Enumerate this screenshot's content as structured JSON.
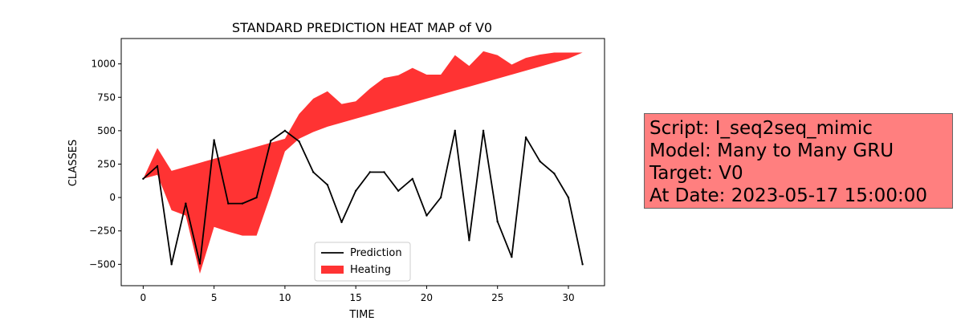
{
  "chart_data": {
    "type": "line",
    "title": "STANDARD PREDICTION HEAT MAP of V0",
    "xlabel": "TIME",
    "ylabel": "CLASSES",
    "xlim": [
      -1.55,
      32.55
    ],
    "ylim": [
      -660,
      1190
    ],
    "xticks": [
      0,
      5,
      10,
      15,
      20,
      25,
      30
    ],
    "yticks": [
      -500,
      -250,
      0,
      250,
      500,
      750,
      1000
    ],
    "grid": false,
    "legend_position": "lower-center",
    "series": [
      {
        "name": "Prediction",
        "kind": "line",
        "color": "#000000",
        "x": [
          0,
          1,
          2,
          3,
          4,
          5,
          6,
          7,
          8,
          9,
          10,
          11,
          12,
          13,
          14,
          15,
          16,
          17,
          18,
          19,
          20,
          21,
          22,
          23,
          24,
          25,
          26,
          27,
          28,
          29,
          30,
          31
        ],
        "y": [
          140,
          235,
          -500,
          -45,
          -495,
          430,
          -45,
          -45,
          0,
          425,
          500,
          420,
          190,
          95,
          -185,
          50,
          190,
          190,
          50,
          140,
          -135,
          0,
          500,
          -320,
          500,
          -180,
          -445,
          450,
          270,
          180,
          0,
          -500
        ]
      },
      {
        "name": "Heating",
        "kind": "fill_between",
        "color": "#ff0000",
        "alpha": 0.8,
        "x": [
          0,
          1,
          2,
          3,
          4,
          5,
          6,
          7,
          8,
          9,
          10,
          11,
          12,
          13,
          14,
          15,
          16,
          17,
          18,
          19,
          20,
          21,
          22,
          23,
          24,
          25,
          26,
          27,
          28,
          29,
          30,
          31
        ],
        "y_lower": [
          140,
          170,
          -95,
          -135,
          -570,
          -220,
          -255,
          -285,
          -285,
          20,
          345,
          440,
          490,
          530,
          560,
          590,
          620,
          650,
          680,
          710,
          740,
          770,
          800,
          830,
          860,
          890,
          920,
          950,
          980,
          1010,
          1040,
          1085
        ],
        "y_upper": [
          140,
          370,
          200,
          230,
          260,
          290,
          320,
          350,
          380,
          410,
          440,
          625,
          740,
          795,
          700,
          720,
          815,
          895,
          915,
          970,
          920,
          920,
          1065,
          985,
          1095,
          1065,
          995,
          1045,
          1070,
          1085,
          1085,
          1085
        ]
      }
    ]
  },
  "info_box": {
    "line1": "Script: I_seq2seq_mimic",
    "line2": "Model: Many to Many GRU",
    "line3": "Target: V0",
    "line4": "At Date: 2023-05-17 15:00:00",
    "color": "#ff7f7f"
  }
}
